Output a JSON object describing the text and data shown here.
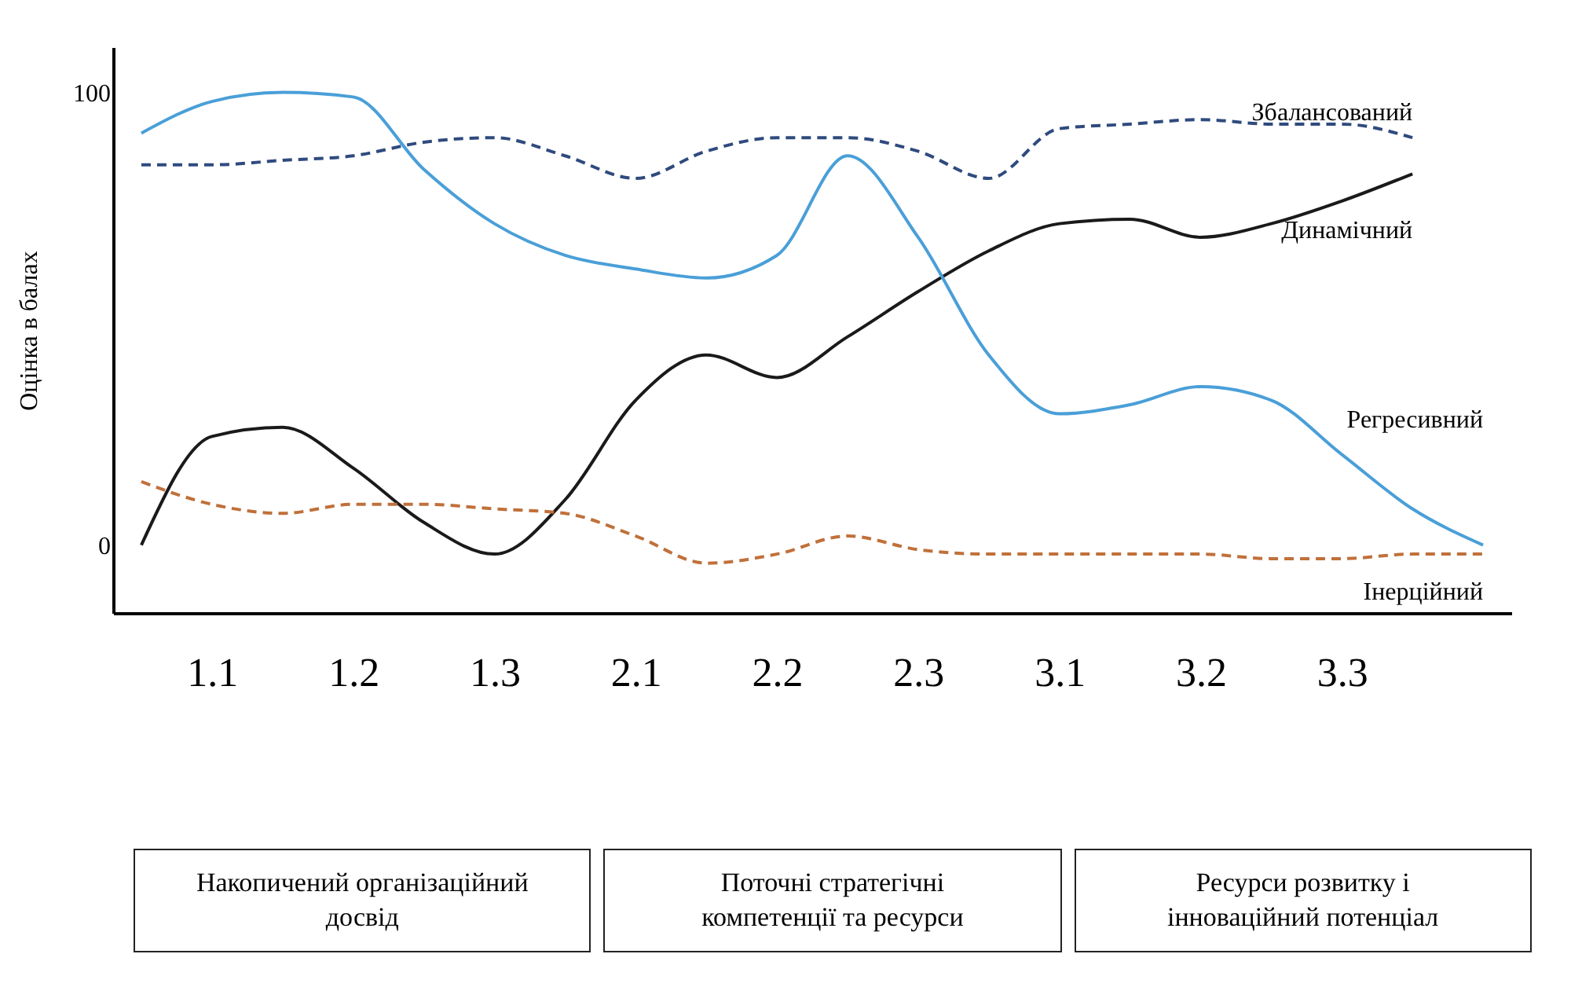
{
  "chart_data": {
    "type": "line",
    "ylabel": "Оцінка в балах",
    "categories": [
      null,
      "1.1",
      null,
      "1.2",
      null,
      "1.3",
      null,
      "2.1",
      null,
      "2.2",
      null,
      "2.3",
      null,
      "3.1",
      null,
      "3.2",
      null,
      "3.3",
      null,
      null
    ],
    "ylim": [
      -15,
      110
    ],
    "yticks": [
      0,
      100
    ],
    "grid": false,
    "series": [
      {
        "name": "Збалансований",
        "color": "#2f4a7e",
        "line_style": "dashed",
        "values": [
          84,
          84,
          85,
          86,
          89,
          90,
          86,
          81,
          87,
          90,
          90,
          87,
          81,
          92,
          93,
          94,
          93,
          93,
          90,
          null
        ]
      },
      {
        "name": "Динамічний",
        "color": "#1a1a1a",
        "line_style": "solid",
        "values": [
          0,
          24,
          26,
          17,
          5,
          -2,
          10,
          32,
          42,
          37,
          46,
          56,
          65,
          71,
          72,
          68,
          71,
          76,
          82,
          null
        ]
      },
      {
        "name": "Регресивний",
        "color": "#4a9fd8",
        "line_style": "solid",
        "values": [
          91,
          98,
          100,
          99,
          83,
          71,
          64,
          61,
          59,
          64,
          86,
          68,
          42,
          29,
          31,
          35,
          32,
          20,
          8,
          0
        ]
      },
      {
        "name": "Інерційний",
        "color": "#c0703a",
        "line_style": "dashed",
        "values": [
          14,
          9,
          7,
          9,
          9,
          8,
          7,
          2,
          -4,
          -2,
          2,
          -1,
          -2,
          -2,
          -2,
          -2,
          -3,
          -3,
          -2,
          -2
        ]
      }
    ],
    "annotations": [
      "Накопичений організаційний досвід",
      "Поточні стратегічні компетенції та ресурси",
      "Ресурси розвитку і інноваційний потенціал"
    ]
  }
}
